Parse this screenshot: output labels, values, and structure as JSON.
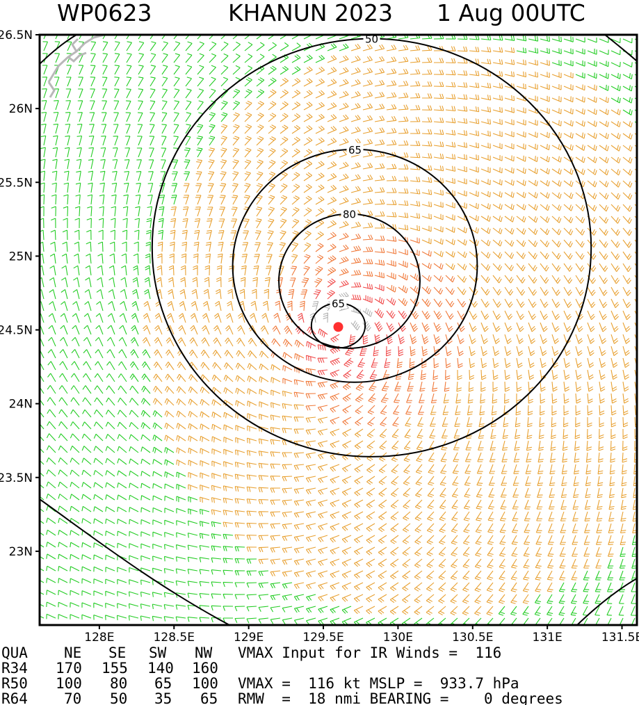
{
  "title": {
    "storm_id": "WP0623",
    "storm_name": "KHANUN 2023",
    "datetime": "1 Aug 00UTC"
  },
  "chart_data": {
    "type": "wind_barb_contour_map",
    "xaxis": {
      "ticks": [
        128.0,
        128.5,
        129.0,
        129.5,
        130.0,
        130.5,
        131.0,
        131.5
      ],
      "tick_labels": [
        "128E",
        "128.5E",
        "129E",
        "129.5E",
        "130E",
        "130.5E",
        "131E",
        "131.5E"
      ],
      "range": [
        127.6,
        131.6
      ]
    },
    "yaxis": {
      "ticks": [
        23.0,
        23.5,
        24.0,
        24.5,
        25.0,
        25.5,
        26.0,
        26.5
      ],
      "tick_labels": [
        "23N",
        "23.5N",
        "24N",
        "24.5N",
        "25N",
        "25.5N",
        "26N",
        "26.5N"
      ],
      "range": [
        22.5,
        26.5
      ]
    },
    "center": {
      "lon": 129.6,
      "lat": 24.52
    },
    "contours": [
      {
        "label": "50",
        "radius_deg": 1.4
      },
      {
        "label": "65",
        "radius_deg": 0.78
      },
      {
        "label": "80",
        "radius_deg": 0.45
      },
      {
        "label": "65",
        "radius_deg": 0.15
      }
    ],
    "speed_color_bands": [
      {
        "range_kt": "< 34",
        "color": "#22cc22"
      },
      {
        "range_kt": "34-50",
        "color": "#e8a030"
      },
      {
        "range_kt": "50-64",
        "color": "#f07838"
      },
      {
        "range_kt": "> 64",
        "color": "#f04848"
      }
    ]
  },
  "table": {
    "header": [
      "QUA",
      "NE",
      "SE",
      "SW",
      "NW"
    ],
    "rows": [
      [
        "R34",
        "170",
        "155",
        "140",
        "160"
      ],
      [
        "R50",
        "100",
        "80",
        "65",
        "100"
      ],
      [
        "R64",
        "70",
        "50",
        "35",
        "65"
      ]
    ],
    "vmax_input": "VMAX Input for IR Winds =  116",
    "vmax_line": "VMAX =  116 kt MSLP =  933.7 hPa",
    "rmw_line": "RMW  =  18 nmi BEARING =    0 degrees"
  },
  "colors": {
    "center_marker": "#ff3030",
    "contour": "#000000",
    "land": "#b8b8b8"
  }
}
